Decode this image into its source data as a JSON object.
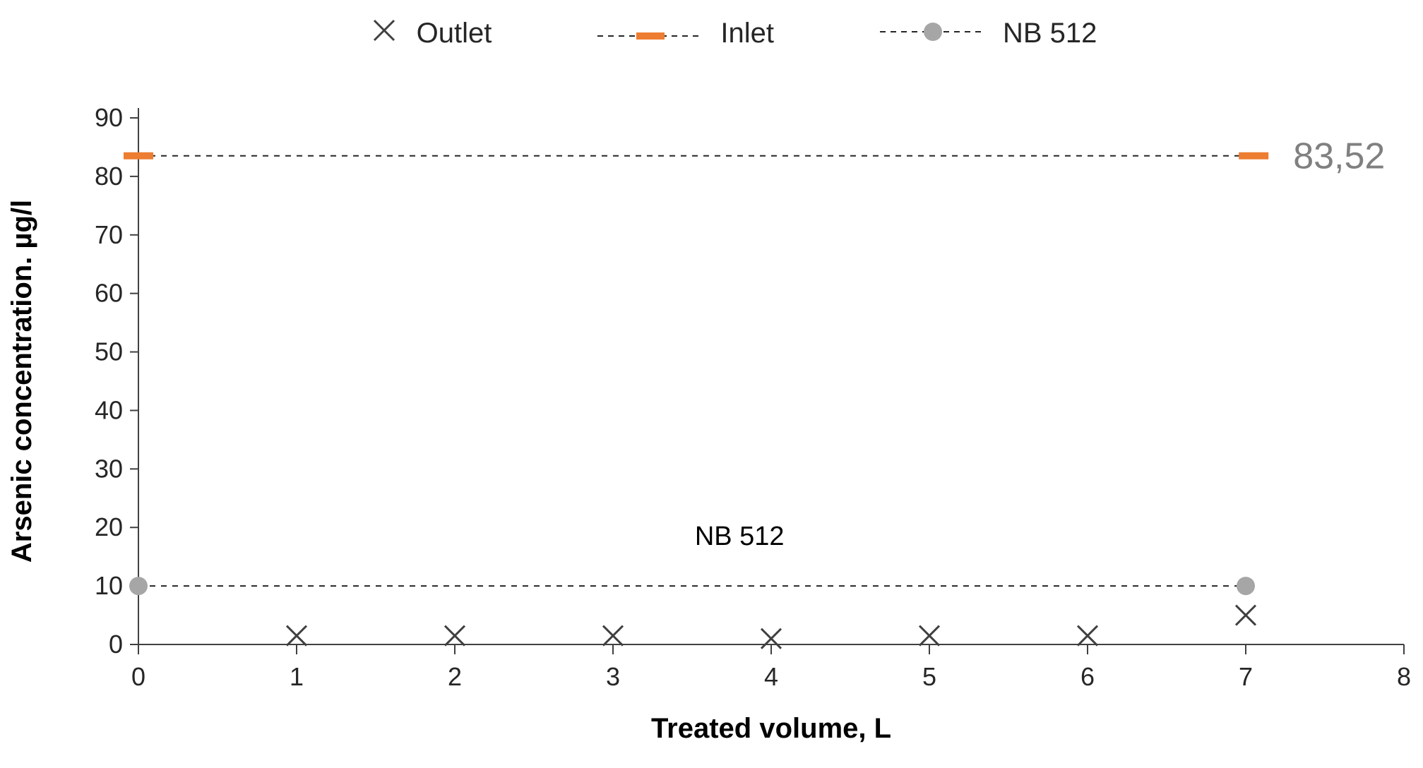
{
  "page": {
    "background": "#ffffff"
  },
  "legend": {
    "items": [
      {
        "id": "outlet",
        "label": "Outlet",
        "marker": "x-marker",
        "color": "#404040"
      },
      {
        "id": "inlet",
        "label": "Inlet",
        "marker": "dash-marker-on-dashed-line",
        "color": "#ED7D31"
      },
      {
        "id": "nb512",
        "label": "NB 512",
        "marker": "circle-marker-on-dashed-line",
        "color": "#A6A6A6"
      }
    ]
  },
  "chart_data": {
    "type": "scatter",
    "title": "",
    "xlabel": "Treated volume, L",
    "ylabel": "Arsenic concentration. µg/l",
    "xlim": [
      0,
      8
    ],
    "ylim": [
      0,
      90
    ],
    "x_ticks": [
      0,
      1,
      2,
      3,
      4,
      5,
      6,
      7,
      8
    ],
    "y_ticks": [
      0,
      10,
      20,
      30,
      40,
      50,
      60,
      70,
      80,
      90
    ],
    "grid": false,
    "legend_position": "top",
    "axis_color": "#404040",
    "tick_label_color": "#262626",
    "series": [
      {
        "name": "Outlet",
        "kind": "scatter",
        "marker": "x",
        "marker_color": "#404040",
        "points": [
          [
            1,
            1.5
          ],
          [
            2,
            1.5
          ],
          [
            3,
            1.5
          ],
          [
            4,
            1
          ],
          [
            5,
            1.5
          ],
          [
            6,
            1.5
          ],
          [
            7,
            5
          ]
        ]
      },
      {
        "name": "Inlet",
        "kind": "dashed-line",
        "line_color": "#262626",
        "marker": "dash",
        "marker_color": "#ED7D31",
        "value": 83.52,
        "points": [
          [
            0,
            83.52
          ],
          [
            7.05,
            83.52
          ]
        ]
      },
      {
        "name": "NB 512",
        "kind": "dashed-line",
        "line_color": "#262626",
        "marker": "circle",
        "marker_color": "#A6A6A6",
        "value": 10,
        "points": [
          [
            0,
            10
          ],
          [
            7,
            10
          ]
        ]
      }
    ],
    "annotations": [
      {
        "id": "inlet-value-label",
        "text": "83,52",
        "x": 7.3,
        "y": 83.52,
        "color": "#808080",
        "size": 52,
        "anchor": "start"
      },
      {
        "id": "nb512-label",
        "text": "NB 512",
        "x": 3.8,
        "y": 17,
        "color": "#000000",
        "size": 38,
        "anchor": "middle"
      }
    ]
  }
}
